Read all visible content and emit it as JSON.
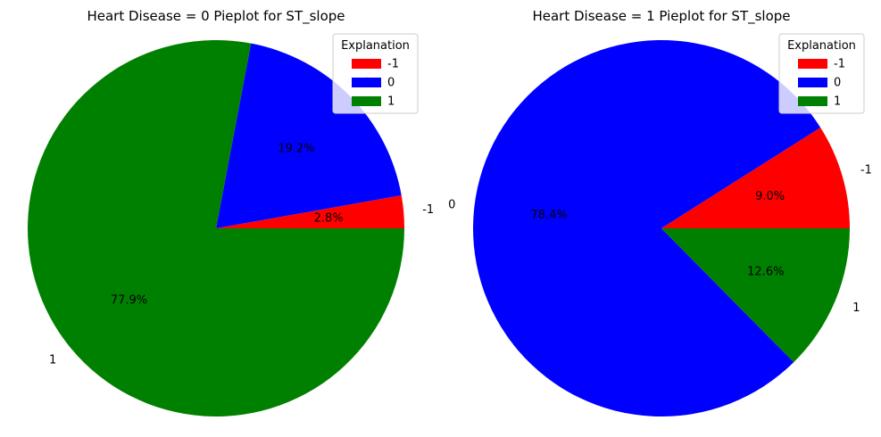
{
  "chart_data": [
    {
      "type": "pie",
      "title": "Heart Disease = 0 Pieplot for ST_slope",
      "labels": [
        "-1",
        "0",
        "1"
      ],
      "values": [
        2.8,
        19.2,
        77.9
      ],
      "pct_labels": [
        "2.8%",
        "19.2%",
        "77.9%"
      ],
      "colors": [
        "#ff0000",
        "#0000ff",
        "#008000"
      ],
      "legend": {
        "title": "Explanation",
        "entries": [
          "-1",
          "0",
          "1"
        ],
        "placement": "upper right"
      }
    },
    {
      "type": "pie",
      "title": "Heart Disease = 1 Pieplot for ST_slope",
      "labels": [
        "-1",
        "0",
        "1"
      ],
      "values": [
        9.0,
        78.4,
        12.6
      ],
      "pct_labels": [
        "9.0%",
        "78.4%",
        "12.6%"
      ],
      "colors": [
        "#ff0000",
        "#0000ff",
        "#008000"
      ],
      "legend": {
        "title": "Explanation",
        "entries": [
          "-1",
          "0",
          "1"
        ],
        "placement": "upper right"
      }
    }
  ]
}
